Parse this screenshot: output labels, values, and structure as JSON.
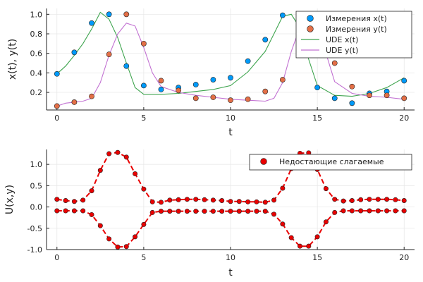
{
  "chart_data": [
    {
      "type": "scatter",
      "xlabel": "t",
      "ylabel": "x(t), y(t)",
      "xlim": [
        -0.6,
        20.6
      ],
      "ylim": [
        0.02,
        1.06
      ],
      "xticks": [
        "0",
        "5",
        "10",
        "15",
        "20"
      ],
      "yticks": [
        "0.2",
        "0.4",
        "0.6",
        "0.8",
        "1.0"
      ],
      "legend_position": "top-right",
      "series": [
        {
          "name": "Измерения x(t)",
          "kind": "scatter",
          "color": "#009AFA",
          "x": [
            0,
            1,
            2,
            3,
            4,
            5,
            6,
            7,
            8,
            9,
            10,
            11,
            12,
            13,
            14,
            15,
            16,
            17,
            18,
            19,
            20
          ],
          "y": [
            0.39,
            0.61,
            0.91,
            1.0,
            0.47,
            0.27,
            0.23,
            0.25,
            0.28,
            0.33,
            0.35,
            0.52,
            0.74,
            0.99,
            0.84,
            0.25,
            0.14,
            0.09,
            0.19,
            0.21,
            0.32
          ]
        },
        {
          "name": "Измерения y(t)",
          "kind": "scatter",
          "color": "#E36F47",
          "x": [
            0,
            1,
            2,
            3,
            4,
            5,
            6,
            7,
            8,
            9,
            10,
            11,
            12,
            13,
            14,
            15,
            16,
            17,
            18,
            19,
            20
          ],
          "y": [
            0.06,
            0.1,
            0.16,
            0.59,
            1.0,
            0.7,
            0.32,
            0.22,
            0.14,
            0.15,
            0.12,
            0.13,
            0.21,
            0.33,
            0.94,
            0.92,
            0.5,
            0.26,
            0.17,
            0.17,
            0.14
          ]
        },
        {
          "name": "UDE x(t)",
          "kind": "line",
          "color": "#3EA44E",
          "x": [
            0,
            0.5,
            1,
            1.5,
            2,
            2.5,
            3,
            3.5,
            4,
            4.5,
            5,
            6,
            7,
            8,
            9,
            10,
            11,
            12,
            12.5,
            13,
            13.5,
            14,
            14.5,
            15,
            16,
            17,
            18,
            19,
            20
          ],
          "y": [
            0.39,
            0.47,
            0.58,
            0.7,
            0.85,
            1.02,
            0.95,
            0.76,
            0.5,
            0.25,
            0.18,
            0.18,
            0.19,
            0.21,
            0.23,
            0.27,
            0.41,
            0.62,
            0.8,
            0.98,
            1.0,
            0.86,
            0.54,
            0.27,
            0.17,
            0.16,
            0.19,
            0.25,
            0.35
          ]
        },
        {
          "name": "UDE y(t)",
          "kind": "line",
          "color": "#C271D2",
          "x": [
            0,
            0.5,
            1,
            1.5,
            2,
            2.5,
            3,
            3.5,
            4,
            4.5,
            5,
            5.5,
            6,
            7,
            8,
            9,
            10,
            11,
            12,
            12.5,
            13,
            13.5,
            14,
            14.5,
            15,
            15.5,
            16,
            17,
            18,
            19,
            20
          ],
          "y": [
            0.06,
            0.09,
            0.1,
            0.11,
            0.14,
            0.3,
            0.58,
            0.8,
            0.91,
            0.88,
            0.66,
            0.4,
            0.26,
            0.2,
            0.17,
            0.15,
            0.13,
            0.12,
            0.11,
            0.14,
            0.3,
            0.62,
            0.87,
            0.91,
            0.87,
            0.6,
            0.31,
            0.19,
            0.16,
            0.15,
            0.13
          ]
        }
      ]
    },
    {
      "type": "line",
      "xlabel": "t",
      "ylabel": "U(x,y)",
      "xlim": [
        -0.6,
        20.6
      ],
      "ylim": [
        -1.0,
        1.35
      ],
      "xticks": [
        "0",
        "5",
        "10",
        "15",
        "20"
      ],
      "yticks": [
        "-1.0",
        "-0.5",
        "0.0",
        "0.5",
        "1.0"
      ],
      "legend_position": "top-right",
      "series": [
        {
          "name": "Недостающие слагаемые",
          "kind": "dashed-line-markers",
          "color": "#E90000",
          "x": [
            0,
            0.5,
            1,
            1.5,
            2,
            2.5,
            3,
            3.5,
            4,
            4.5,
            5,
            5.5,
            6,
            6.5,
            7,
            7.5,
            8,
            8.5,
            9,
            9.5,
            10,
            10.5,
            11,
            11.5,
            12,
            12.5,
            13,
            13.5,
            14,
            14.5,
            15,
            15.5,
            16,
            16.5,
            17,
            17.5,
            18,
            18.5,
            19,
            19.5,
            20
          ],
          "y": [
            0.18,
            0.15,
            0.13,
            0.16,
            0.38,
            0.86,
            1.25,
            1.28,
            1.17,
            0.78,
            0.42,
            0.12,
            0.11,
            0.16,
            0.17,
            0.18,
            0.18,
            0.17,
            0.16,
            0.15,
            0.13,
            0.13,
            0.12,
            0.12,
            0.11,
            0.16,
            0.44,
            0.9,
            1.26,
            1.27,
            0.88,
            0.43,
            0.18,
            0.14,
            0.15,
            0.17,
            0.18,
            0.18,
            0.18,
            0.17,
            0.15
          ]
        },
        {
          "name": "",
          "kind": "dashed-line-markers",
          "color": "#E90000",
          "x": [
            0,
            0.5,
            1,
            1.5,
            2,
            2.5,
            3,
            3.5,
            4,
            4.5,
            5,
            5.5,
            6,
            6.5,
            7,
            7.5,
            8,
            8.5,
            9,
            9.5,
            10,
            10.5,
            11,
            11.5,
            12,
            12.5,
            13,
            13.5,
            14,
            14.5,
            15,
            15.5,
            16,
            16.5,
            17,
            17.5,
            18,
            18.5,
            19,
            19.5,
            20
          ],
          "y": [
            -0.09,
            -0.09,
            -0.09,
            -0.09,
            -0.18,
            -0.44,
            -0.75,
            -0.94,
            -0.93,
            -0.7,
            -0.41,
            -0.13,
            -0.1,
            -0.1,
            -0.1,
            -0.1,
            -0.1,
            -0.1,
            -0.1,
            -0.1,
            -0.1,
            -0.1,
            -0.1,
            -0.1,
            -0.1,
            -0.17,
            -0.4,
            -0.72,
            -0.92,
            -0.92,
            -0.7,
            -0.35,
            -0.13,
            -0.09,
            -0.09,
            -0.09,
            -0.09,
            -0.09,
            -0.09,
            -0.09,
            -0.09
          ]
        }
      ]
    }
  ]
}
